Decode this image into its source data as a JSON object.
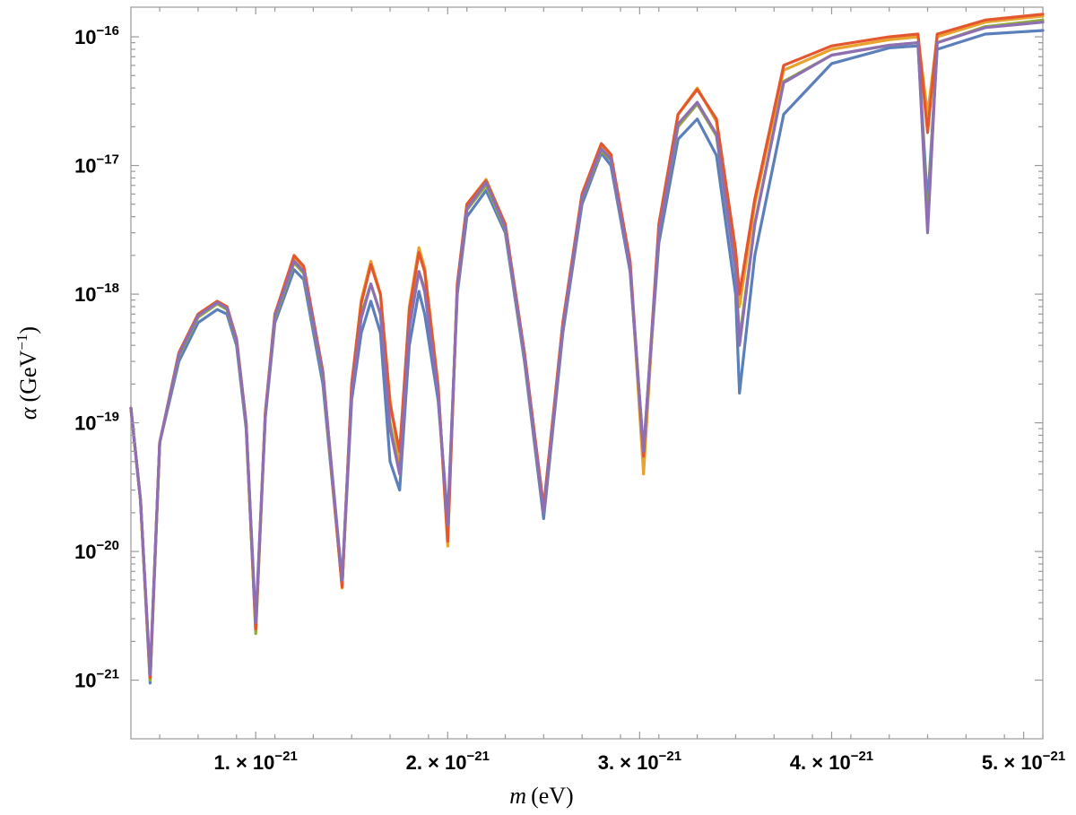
{
  "chart_data": {
    "type": "line",
    "title": "",
    "xlabel_var": "m",
    "xlabel_unit": "(eV)",
    "ylabel_var": "α",
    "ylabel_unit": "(GeV",
    "ylabel_unit_exp": "−1",
    "ylabel_unit_close": ")",
    "yscale": "log",
    "xlim": [
      3.5e-22,
      5.1e-21
    ],
    "ylim": [
      3.5e-22,
      1.7e-16
    ],
    "grid": false,
    "legend": "none",
    "x_ticks": [
      {
        "value": 1e-21,
        "mant": "1.",
        "times": "×",
        "base": "10",
        "exp": "−21"
      },
      {
        "value": 2e-21,
        "mant": "2.",
        "times": "×",
        "base": "10",
        "exp": "−21"
      },
      {
        "value": 3e-21,
        "mant": "3.",
        "times": "×",
        "base": "10",
        "exp": "−21"
      },
      {
        "value": 4e-21,
        "mant": "4.",
        "times": "×",
        "base": "10",
        "exp": "−21"
      },
      {
        "value": 5e-21,
        "mant": "5.",
        "times": "×",
        "base": "10",
        "exp": "−21"
      }
    ],
    "y_ticks": [
      {
        "value": 1e-21,
        "base": "10",
        "exp": "−21"
      },
      {
        "value": 1e-20,
        "base": "10",
        "exp": "−20"
      },
      {
        "value": 1e-19,
        "base": "10",
        "exp": "−19"
      },
      {
        "value": 1e-18,
        "base": "10",
        "exp": "−18"
      },
      {
        "value": 1e-17,
        "base": "10",
        "exp": "−17"
      },
      {
        "value": 1e-16,
        "base": "10",
        "exp": "−16"
      }
    ],
    "series": [
      {
        "color": "#5b7fba",
        "points": [
          [
            3.5e-22,
            1.3e-19
          ],
          [
            4e-22,
            2.5e-20
          ],
          [
            4.5e-22,
            9.5e-22
          ],
          [
            5e-22,
            7e-20
          ],
          [
            6e-22,
            3e-19
          ],
          [
            7e-22,
            6e-19
          ],
          [
            8e-22,
            7.6e-19
          ],
          [
            8.5e-22,
            7e-19
          ],
          [
            9e-22,
            4e-19
          ],
          [
            9.5e-22,
            9e-20
          ],
          [
            1e-21,
            2.6e-21
          ],
          [
            1.05e-21,
            1.1e-19
          ],
          [
            1.1e-21,
            6e-19
          ],
          [
            1.2e-21,
            1.55e-18
          ],
          [
            1.25e-21,
            1.3e-18
          ],
          [
            1.35e-21,
            2e-19
          ],
          [
            1.45e-21,
            5.5e-21
          ],
          [
            1.5e-21,
            1.5e-19
          ],
          [
            1.55e-21,
            5e-19
          ],
          [
            1.6e-21,
            8.8e-19
          ],
          [
            1.65e-21,
            5e-19
          ],
          [
            1.7e-21,
            5e-20
          ],
          [
            1.75e-21,
            3e-20
          ],
          [
            1.8e-21,
            4e-19
          ],
          [
            1.85e-21,
            1.05e-18
          ],
          [
            1.88e-21,
            7e-19
          ],
          [
            1.95e-21,
            1.5e-19
          ],
          [
            2e-21,
            1.8e-20
          ],
          [
            2.05e-21,
            1e-18
          ],
          [
            2.1e-21,
            4e-18
          ],
          [
            2.2e-21,
            6.4e-18
          ],
          [
            2.3e-21,
            3e-18
          ],
          [
            2.4e-21,
            3e-19
          ],
          [
            2.5e-21,
            1.8e-20
          ],
          [
            2.6e-21,
            5e-19
          ],
          [
            2.7e-21,
            5e-18
          ],
          [
            2.8e-21,
            1.25e-17
          ],
          [
            2.85e-21,
            1e-17
          ],
          [
            2.95e-21,
            1.5e-18
          ],
          [
            3.02e-21,
            6e-20
          ],
          [
            3.1e-21,
            2.5e-18
          ],
          [
            3.2e-21,
            1.6e-17
          ],
          [
            3.3e-21,
            2.3e-17
          ],
          [
            3.4e-21,
            1.2e-17
          ],
          [
            3.5e-21,
            1e-18
          ],
          [
            3.52e-21,
            1.7e-19
          ],
          [
            3.6e-21,
            2e-18
          ],
          [
            3.75e-21,
            2.5e-17
          ],
          [
            4e-21,
            6.2e-17
          ],
          [
            4.3e-21,
            8.2e-17
          ],
          [
            4.45e-21,
            8.5e-17
          ],
          [
            4.5e-21,
            5e-18
          ],
          [
            4.55e-21,
            8e-17
          ],
          [
            4.8e-21,
            1.05e-16
          ],
          [
            5.1e-21,
            1.12e-16
          ]
        ]
      },
      {
        "color": "#e8a22e",
        "points": [
          [
            3.5e-22,
            1.3e-19
          ],
          [
            4e-22,
            2.5e-20
          ],
          [
            4.5e-22,
            1e-21
          ],
          [
            5e-22,
            7e-20
          ],
          [
            6e-22,
            3.5e-19
          ],
          [
            7e-22,
            7e-19
          ],
          [
            8e-22,
            8.8e-19
          ],
          [
            8.5e-22,
            8e-19
          ],
          [
            9e-22,
            4.5e-19
          ],
          [
            9.5e-22,
            1e-19
          ],
          [
            1e-21,
            2.4e-21
          ],
          [
            1.05e-21,
            1.2e-19
          ],
          [
            1.1e-21,
            7e-19
          ],
          [
            1.2e-21,
            1.9e-18
          ],
          [
            1.25e-21,
            1.6e-18
          ],
          [
            1.35e-21,
            2.5e-19
          ],
          [
            1.45e-21,
            5.2e-21
          ],
          [
            1.5e-21,
            2e-19
          ],
          [
            1.55e-21,
            9e-19
          ],
          [
            1.6e-21,
            1.8e-18
          ],
          [
            1.65e-21,
            1e-18
          ],
          [
            1.7e-21,
            1.5e-19
          ],
          [
            1.75e-21,
            5e-20
          ],
          [
            1.8e-21,
            8e-19
          ],
          [
            1.85e-21,
            2.3e-18
          ],
          [
            1.88e-21,
            1.6e-18
          ],
          [
            1.95e-21,
            2e-19
          ],
          [
            2e-21,
            1.1e-20
          ],
          [
            2.05e-21,
            1.2e-18
          ],
          [
            2.1e-21,
            5e-18
          ],
          [
            2.2e-21,
            7.8e-18
          ],
          [
            2.3e-21,
            3.5e-18
          ],
          [
            2.4e-21,
            3.5e-19
          ],
          [
            2.5e-21,
            2.2e-20
          ],
          [
            2.6e-21,
            6e-19
          ],
          [
            2.7e-21,
            6e-18
          ],
          [
            2.8e-21,
            1.45e-17
          ],
          [
            2.85e-21,
            1.2e-17
          ],
          [
            2.95e-21,
            1.8e-18
          ],
          [
            3.02e-21,
            4e-20
          ],
          [
            3.1e-21,
            3.5e-18
          ],
          [
            3.2e-21,
            2.5e-17
          ],
          [
            3.3e-21,
            4e-17
          ],
          [
            3.4e-21,
            2.2e-17
          ],
          [
            3.5e-21,
            2e-18
          ],
          [
            3.52e-21,
            8e-19
          ],
          [
            3.6e-21,
            5e-18
          ],
          [
            3.75e-21,
            5.5e-17
          ],
          [
            4e-21,
            8e-17
          ],
          [
            4.3e-21,
            9.5e-17
          ],
          [
            4.45e-21,
            1e-16
          ],
          [
            4.5e-21,
            2.5e-17
          ],
          [
            4.55e-21,
            1e-16
          ],
          [
            4.8e-21,
            1.3e-16
          ],
          [
            5.1e-21,
            1.45e-16
          ]
        ]
      },
      {
        "color": "#8fac3b",
        "points": [
          [
            3.5e-22,
            1.3e-19
          ],
          [
            4e-22,
            2.5e-20
          ],
          [
            4.5e-22,
            1e-21
          ],
          [
            5e-22,
            7e-20
          ],
          [
            6e-22,
            3.3e-19
          ],
          [
            7e-22,
            6.6e-19
          ],
          [
            8e-22,
            8.4e-19
          ],
          [
            8.5e-22,
            7.6e-19
          ],
          [
            9e-22,
            4.3e-19
          ],
          [
            9.5e-22,
            9.5e-20
          ],
          [
            1e-21,
            2.3e-21
          ],
          [
            1.05e-21,
            1.15e-19
          ],
          [
            1.1e-21,
            6.5e-19
          ],
          [
            1.2e-21,
            1.75e-18
          ],
          [
            1.25e-21,
            1.45e-18
          ],
          [
            1.35e-21,
            2.3e-19
          ],
          [
            1.45e-21,
            5.4e-21
          ],
          [
            1.5e-21,
            1.8e-19
          ],
          [
            1.55e-21,
            7e-19
          ],
          [
            1.6e-21,
            1.2e-18
          ],
          [
            1.65e-21,
            7e-19
          ],
          [
            1.7e-21,
            1e-19
          ],
          [
            1.75e-21,
            4e-20
          ],
          [
            1.8e-21,
            6e-19
          ],
          [
            1.85e-21,
            1.5e-18
          ],
          [
            1.88e-21,
            1.1e-18
          ],
          [
            1.95e-21,
            1.8e-19
          ],
          [
            2e-21,
            1.4e-20
          ],
          [
            2.05e-21,
            1.1e-18
          ],
          [
            2.1e-21,
            4.5e-18
          ],
          [
            2.2e-21,
            7e-18
          ],
          [
            2.3e-21,
            3.2e-18
          ],
          [
            2.4e-21,
            3.2e-19
          ],
          [
            2.5e-21,
            2e-20
          ],
          [
            2.6e-21,
            5.5e-19
          ],
          [
            2.7e-21,
            5.5e-18
          ],
          [
            2.8e-21,
            1.3e-17
          ],
          [
            2.85e-21,
            1.1e-17
          ],
          [
            2.95e-21,
            1.6e-18
          ],
          [
            3.02e-21,
            5.5e-20
          ],
          [
            3.1e-21,
            3e-18
          ],
          [
            3.2e-21,
            2e-17
          ],
          [
            3.3e-21,
            3e-17
          ],
          [
            3.4e-21,
            1.7e-17
          ],
          [
            3.5e-21,
            1.5e-18
          ],
          [
            3.52e-21,
            4.5e-19
          ],
          [
            3.6e-21,
            3.5e-18
          ],
          [
            3.75e-21,
            4.5e-17
          ],
          [
            4e-21,
            7.2e-17
          ],
          [
            4.3e-21,
            8.6e-17
          ],
          [
            4.45e-21,
            9e-17
          ],
          [
            4.5e-21,
            3.5e-18
          ],
          [
            4.55e-21,
            9e-17
          ],
          [
            4.8e-21,
            1.2e-16
          ],
          [
            5.1e-21,
            1.35e-16
          ]
        ]
      },
      {
        "color": "#e4572e",
        "points": [
          [
            3.5e-22,
            1.3e-19
          ],
          [
            4e-22,
            2.5e-20
          ],
          [
            4.5e-22,
            1.05e-21
          ],
          [
            5e-22,
            7e-20
          ],
          [
            6e-22,
            3.5e-19
          ],
          [
            7e-22,
            7e-19
          ],
          [
            8e-22,
            8.8e-19
          ],
          [
            8.5e-22,
            8e-19
          ],
          [
            9e-22,
            4.5e-19
          ],
          [
            9.5e-22,
            1e-19
          ],
          [
            1e-21,
            2.5e-21
          ],
          [
            1.05e-21,
            1.2e-19
          ],
          [
            1.1e-21,
            7e-19
          ],
          [
            1.2e-21,
            2e-18
          ],
          [
            1.25e-21,
            1.65e-18
          ],
          [
            1.35e-21,
            2.5e-19
          ],
          [
            1.45e-21,
            5.3e-21
          ],
          [
            1.5e-21,
            2e-19
          ],
          [
            1.55e-21,
            8.5e-19
          ],
          [
            1.6e-21,
            1.7e-18
          ],
          [
            1.65e-21,
            1e-18
          ],
          [
            1.7e-21,
            1.4e-19
          ],
          [
            1.75e-21,
            6e-20
          ],
          [
            1.8e-21,
            7.5e-19
          ],
          [
            1.85e-21,
            2.1e-18
          ],
          [
            1.88e-21,
            1.5e-18
          ],
          [
            1.95e-21,
            1.9e-19
          ],
          [
            2e-21,
            1.2e-20
          ],
          [
            2.05e-21,
            1.2e-18
          ],
          [
            2.1e-21,
            5e-18
          ],
          [
            2.2e-21,
            7.6e-18
          ],
          [
            2.3e-21,
            3.5e-18
          ],
          [
            2.4e-21,
            3.5e-19
          ],
          [
            2.5e-21,
            2.2e-20
          ],
          [
            2.6e-21,
            6e-19
          ],
          [
            2.7e-21,
            6e-18
          ],
          [
            2.8e-21,
            1.48e-17
          ],
          [
            2.85e-21,
            1.22e-17
          ],
          [
            2.95e-21,
            1.8e-18
          ],
          [
            3.02e-21,
            5.5e-20
          ],
          [
            3.1e-21,
            3.5e-18
          ],
          [
            3.2e-21,
            2.5e-17
          ],
          [
            3.3e-21,
            3.9e-17
          ],
          [
            3.4e-21,
            2.3e-17
          ],
          [
            3.5e-21,
            2.2e-18
          ],
          [
            3.52e-21,
            1e-18
          ],
          [
            3.6e-21,
            5.5e-18
          ],
          [
            3.75e-21,
            6e-17
          ],
          [
            4e-21,
            8.5e-17
          ],
          [
            4.3e-21,
            1e-16
          ],
          [
            4.45e-21,
            1.05e-16
          ],
          [
            4.5e-21,
            1.8e-17
          ],
          [
            4.55e-21,
            1.05e-16
          ],
          [
            4.8e-21,
            1.35e-16
          ],
          [
            5.1e-21,
            1.5e-16
          ]
        ]
      },
      {
        "color": "#8e6fb4",
        "points": [
          [
            3.5e-22,
            1.3e-19
          ],
          [
            4e-22,
            2.5e-20
          ],
          [
            4.5e-22,
            1.1e-21
          ],
          [
            5e-22,
            7e-20
          ],
          [
            6e-22,
            3.4e-19
          ],
          [
            7e-22,
            6.8e-19
          ],
          [
            8e-22,
            8.6e-19
          ],
          [
            8.5e-22,
            7.8e-19
          ],
          [
            9e-22,
            4.4e-19
          ],
          [
            9.5e-22,
            9.8e-20
          ],
          [
            1e-21,
            2.8e-21
          ],
          [
            1.05e-21,
            1.15e-19
          ],
          [
            1.1e-21,
            6.8e-19
          ],
          [
            1.2e-21,
            1.8e-18
          ],
          [
            1.25e-21,
            1.5e-18
          ],
          [
            1.35e-21,
            2.4e-19
          ],
          [
            1.45e-21,
            6e-21
          ],
          [
            1.5e-21,
            1.7e-19
          ],
          [
            1.55e-21,
            6.5e-19
          ],
          [
            1.6e-21,
            1.2e-18
          ],
          [
            1.65e-21,
            7e-19
          ],
          [
            1.7e-21,
            9e-20
          ],
          [
            1.75e-21,
            4e-20
          ],
          [
            1.8e-21,
            5.5e-19
          ],
          [
            1.85e-21,
            1.5e-18
          ],
          [
            1.88e-21,
            1.05e-18
          ],
          [
            1.95e-21,
            1.7e-19
          ],
          [
            2e-21,
            1.6e-20
          ],
          [
            2.05e-21,
            1.1e-18
          ],
          [
            2.1e-21,
            4.6e-18
          ],
          [
            2.2e-21,
            7.4e-18
          ],
          [
            2.3e-21,
            3.3e-18
          ],
          [
            2.4e-21,
            3.3e-19
          ],
          [
            2.5e-21,
            2e-20
          ],
          [
            2.6e-21,
            5.5e-19
          ],
          [
            2.7e-21,
            5.6e-18
          ],
          [
            2.8e-21,
            1.35e-17
          ],
          [
            2.85e-21,
            1.12e-17
          ],
          [
            2.95e-21,
            1.6e-18
          ],
          [
            3.02e-21,
            6e-20
          ],
          [
            3.1e-21,
            3e-18
          ],
          [
            3.2e-21,
            2.1e-17
          ],
          [
            3.3e-21,
            3.1e-17
          ],
          [
            3.4e-21,
            1.75e-17
          ],
          [
            3.5e-21,
            1.5e-18
          ],
          [
            3.52e-21,
            4e-19
          ],
          [
            3.6e-21,
            3.5e-18
          ],
          [
            3.75e-21,
            4.4e-17
          ],
          [
            4e-21,
            7.2e-17
          ],
          [
            4.3e-21,
            8.6e-17
          ],
          [
            4.45e-21,
            9e-17
          ],
          [
            4.5e-21,
            3e-18
          ],
          [
            4.55e-21,
            9e-17
          ],
          [
            4.8e-21,
            1.18e-16
          ],
          [
            5.1e-21,
            1.3e-16
          ]
        ]
      }
    ]
  }
}
